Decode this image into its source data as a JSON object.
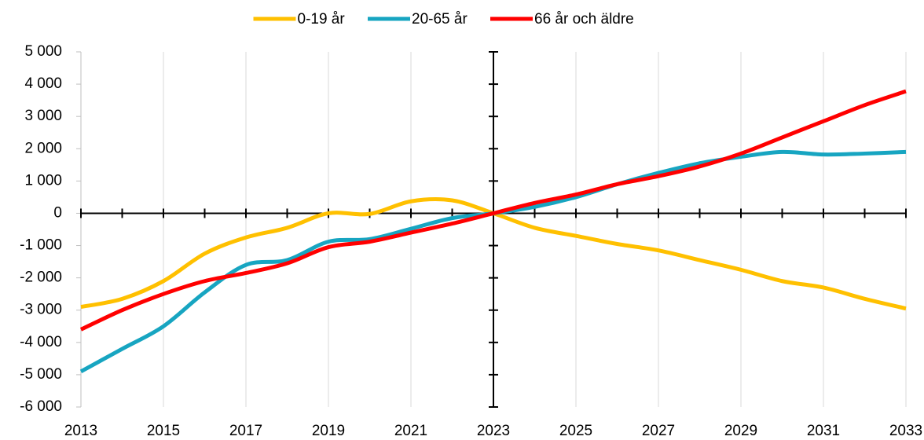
{
  "chart_data": {
    "type": "line",
    "x": [
      2013,
      2014,
      2015,
      2016,
      2017,
      2018,
      2019,
      2020,
      2021,
      2022,
      2023,
      2024,
      2025,
      2026,
      2027,
      2028,
      2029,
      2030,
      2031,
      2032,
      2033
    ],
    "series": [
      {
        "name": "0-19 år",
        "color": "#ffc000",
        "values": [
          -2900,
          -2650,
          -2100,
          -1250,
          -750,
          -450,
          0,
          -20,
          370,
          400,
          0,
          -450,
          -700,
          -950,
          -1150,
          -1450,
          -1750,
          -2100,
          -2300,
          -2650,
          -2950
        ]
      },
      {
        "name": "20-65 år",
        "color": "#17a5c1",
        "values": [
          -4900,
          -4200,
          -3500,
          -2450,
          -1600,
          -1450,
          -880,
          -800,
          -480,
          -150,
          0,
          200,
          500,
          900,
          1250,
          1550,
          1750,
          1900,
          1820,
          1850,
          1900
        ]
      },
      {
        "name": "66 år och äldre",
        "color": "#ff0000",
        "values": [
          -3600,
          -3000,
          -2500,
          -2100,
          -1850,
          -1550,
          -1050,
          -880,
          -600,
          -320,
          0,
          320,
          580,
          900,
          1150,
          1450,
          1850,
          2350,
          2850,
          3350,
          3780
        ]
      }
    ],
    "xlim": [
      2013,
      2033
    ],
    "xticks": [
      2013,
      2015,
      2017,
      2019,
      2021,
      2023,
      2025,
      2027,
      2029,
      2031,
      2033
    ],
    "ylim": [
      -6000,
      5000
    ],
    "yticks": [
      {
        "value": -6000,
        "label": "-6 000"
      },
      {
        "value": -5000,
        "label": "-5 000"
      },
      {
        "value": -4000,
        "label": "-4 000"
      },
      {
        "value": -3000,
        "label": "-3 000"
      },
      {
        "value": -2000,
        "label": "-2 000"
      },
      {
        "value": -1000,
        "label": "-1 000"
      },
      0,
      {
        "value": 1000,
        "label": "1 000"
      },
      {
        "value": 2000,
        "label": "2 000"
      },
      {
        "value": 3000,
        "label": "3 000"
      },
      {
        "value": 4000,
        "label": "4 000"
      },
      {
        "value": 5000,
        "label": "5 000"
      }
    ],
    "grid": true,
    "legend": "top"
  }
}
